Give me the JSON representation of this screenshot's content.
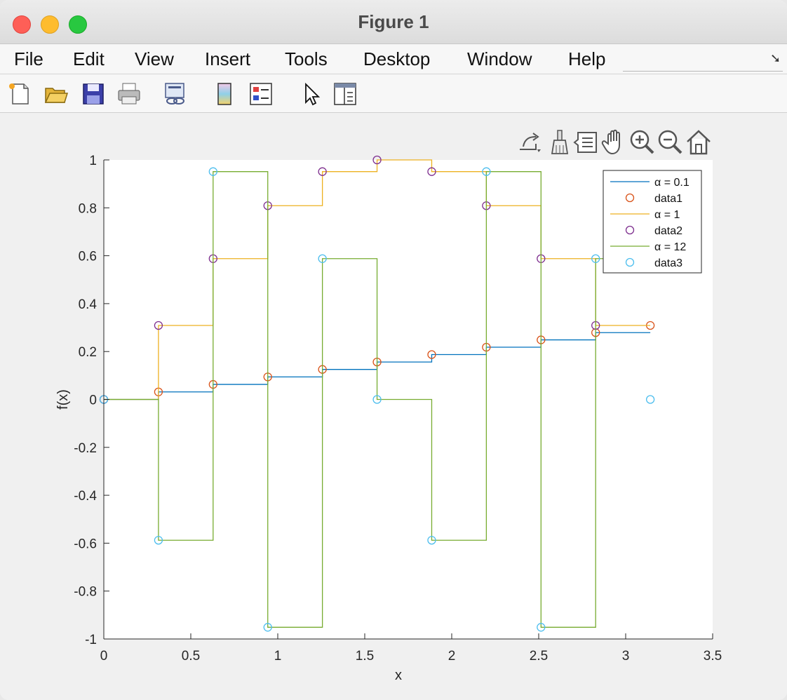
{
  "window": {
    "title": "Figure 1"
  },
  "menu": {
    "items": [
      "File",
      "Edit",
      "View",
      "Insert",
      "Tools",
      "Desktop",
      "Window",
      "Help"
    ]
  },
  "toolbar": {
    "icons": [
      "new-figure-icon",
      "open-file-icon",
      "save-icon",
      "print-icon",
      "link-plot-icon",
      "insert-colorbar-icon",
      "insert-legend-icon",
      "edit-plot-icon",
      "property-inspector-icon"
    ]
  },
  "axes_toolbar": {
    "icons": [
      "export-icon",
      "brush-icon",
      "data-tips-icon",
      "pan-icon",
      "zoom-in-icon",
      "zoom-out-icon",
      "home-icon"
    ]
  },
  "chart_data": {
    "type": "line",
    "xlabel": "x",
    "ylabel": "f(x)",
    "xlim": [
      0,
      3.5
    ],
    "ylim": [
      -1,
      1
    ],
    "xticks": [
      "0",
      "0.5",
      "1",
      "1.5",
      "2",
      "2.5",
      "3",
      "3.5"
    ],
    "yticks": [
      "1",
      "0.8",
      "0.6",
      "0.4",
      "0.2",
      "0",
      "-0.2",
      "-0.4",
      "-0.6",
      "-0.8",
      "-1"
    ],
    "grid": false,
    "legend_position": "top-right",
    "legend": [
      "α = 0.1",
      "data1",
      "α = 1",
      "data2",
      "α = 12",
      "data3"
    ],
    "sample_x": [
      0,
      0.3142,
      0.6283,
      0.9425,
      1.2566,
      1.5708,
      1.885,
      2.1991,
      2.5133,
      2.8274,
      3.1416
    ],
    "series": [
      {
        "name": "α = 0.1",
        "style": "stairs",
        "color": "#0072bd",
        "y": [
          0,
          0.0314,
          0.0628,
          0.0941,
          0.1253,
          0.1564,
          0.1874,
          0.2181,
          0.2487,
          0.279,
          0.279
        ]
      },
      {
        "name": "data1",
        "style": "markers",
        "color": "#d95319",
        "y": [
          0,
          0.0314,
          0.0628,
          0.0941,
          0.1253,
          0.1564,
          0.1874,
          0.2181,
          0.2487,
          0.279,
          0.309
        ]
      },
      {
        "name": "α = 1",
        "style": "stairs",
        "color": "#edb120",
        "y": [
          0,
          0.309,
          0.5878,
          0.809,
          0.9511,
          1.0,
          0.9511,
          0.809,
          0.5878,
          0.309,
          0.309
        ]
      },
      {
        "name": "data2",
        "style": "markers",
        "color": "#7e2f8e",
        "y": [
          0,
          0.309,
          0.5878,
          0.809,
          0.9511,
          1.0,
          0.9511,
          0.809,
          0.5878,
          0.309,
          null
        ]
      },
      {
        "name": "α = 12",
        "style": "stairs",
        "color": "#77ac30",
        "y": [
          0,
          -0.5878,
          0.9511,
          -0.9511,
          0.5878,
          0,
          -0.5878,
          0.9511,
          -0.9511,
          0.5878,
          0.5878
        ]
      },
      {
        "name": "data3",
        "style": "markers",
        "color": "#4dbeee",
        "y": [
          0,
          -0.5878,
          0.9511,
          -0.9511,
          0.5878,
          0,
          -0.5878,
          0.9511,
          -0.9511,
          0.5878,
          0
        ]
      }
    ]
  }
}
